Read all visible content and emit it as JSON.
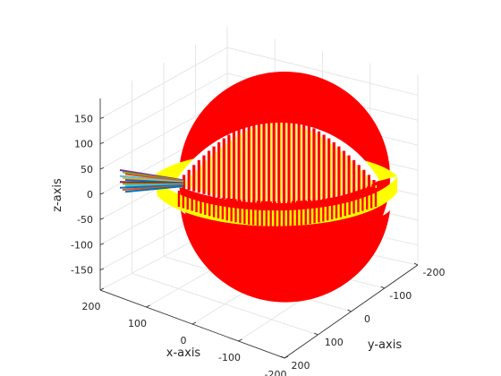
{
  "chart_data": {
    "type": "surface3d",
    "title": "",
    "xlabel": "x-axis",
    "ylabel": "y-axis",
    "zlabel": "z-axis",
    "xlim": [
      -200,
      200
    ],
    "ylim": [
      -200,
      200
    ],
    "zlim": [
      -190,
      190
    ],
    "x_ticks": [
      "200",
      "100",
      "0",
      "-100",
      "-200"
    ],
    "y_ticks": [
      "200",
      "100",
      "0",
      "-100",
      "-200"
    ],
    "z_ticks": [
      "150",
      "100",
      "50",
      "0",
      "-50",
      "-100",
      "-150"
    ],
    "grid": true,
    "sphere": {
      "radius": 185,
      "color": "#ff0000"
    },
    "ring": {
      "inner_radius": 140,
      "outer_radius": 200,
      "z": 0,
      "color": "#ffff00"
    },
    "cut_slots": {
      "count": 40,
      "color": "#ffff00"
    },
    "rods": {
      "count": 12,
      "colors": [
        "#7e2f8e",
        "#77ac30",
        "#d95319",
        "#4dbeee",
        "#edb120",
        "#0072bd",
        "#a2142f",
        "#77ac30",
        "#4dbeee",
        "#0072bd",
        "#d95319",
        "#0072bd"
      ]
    }
  }
}
